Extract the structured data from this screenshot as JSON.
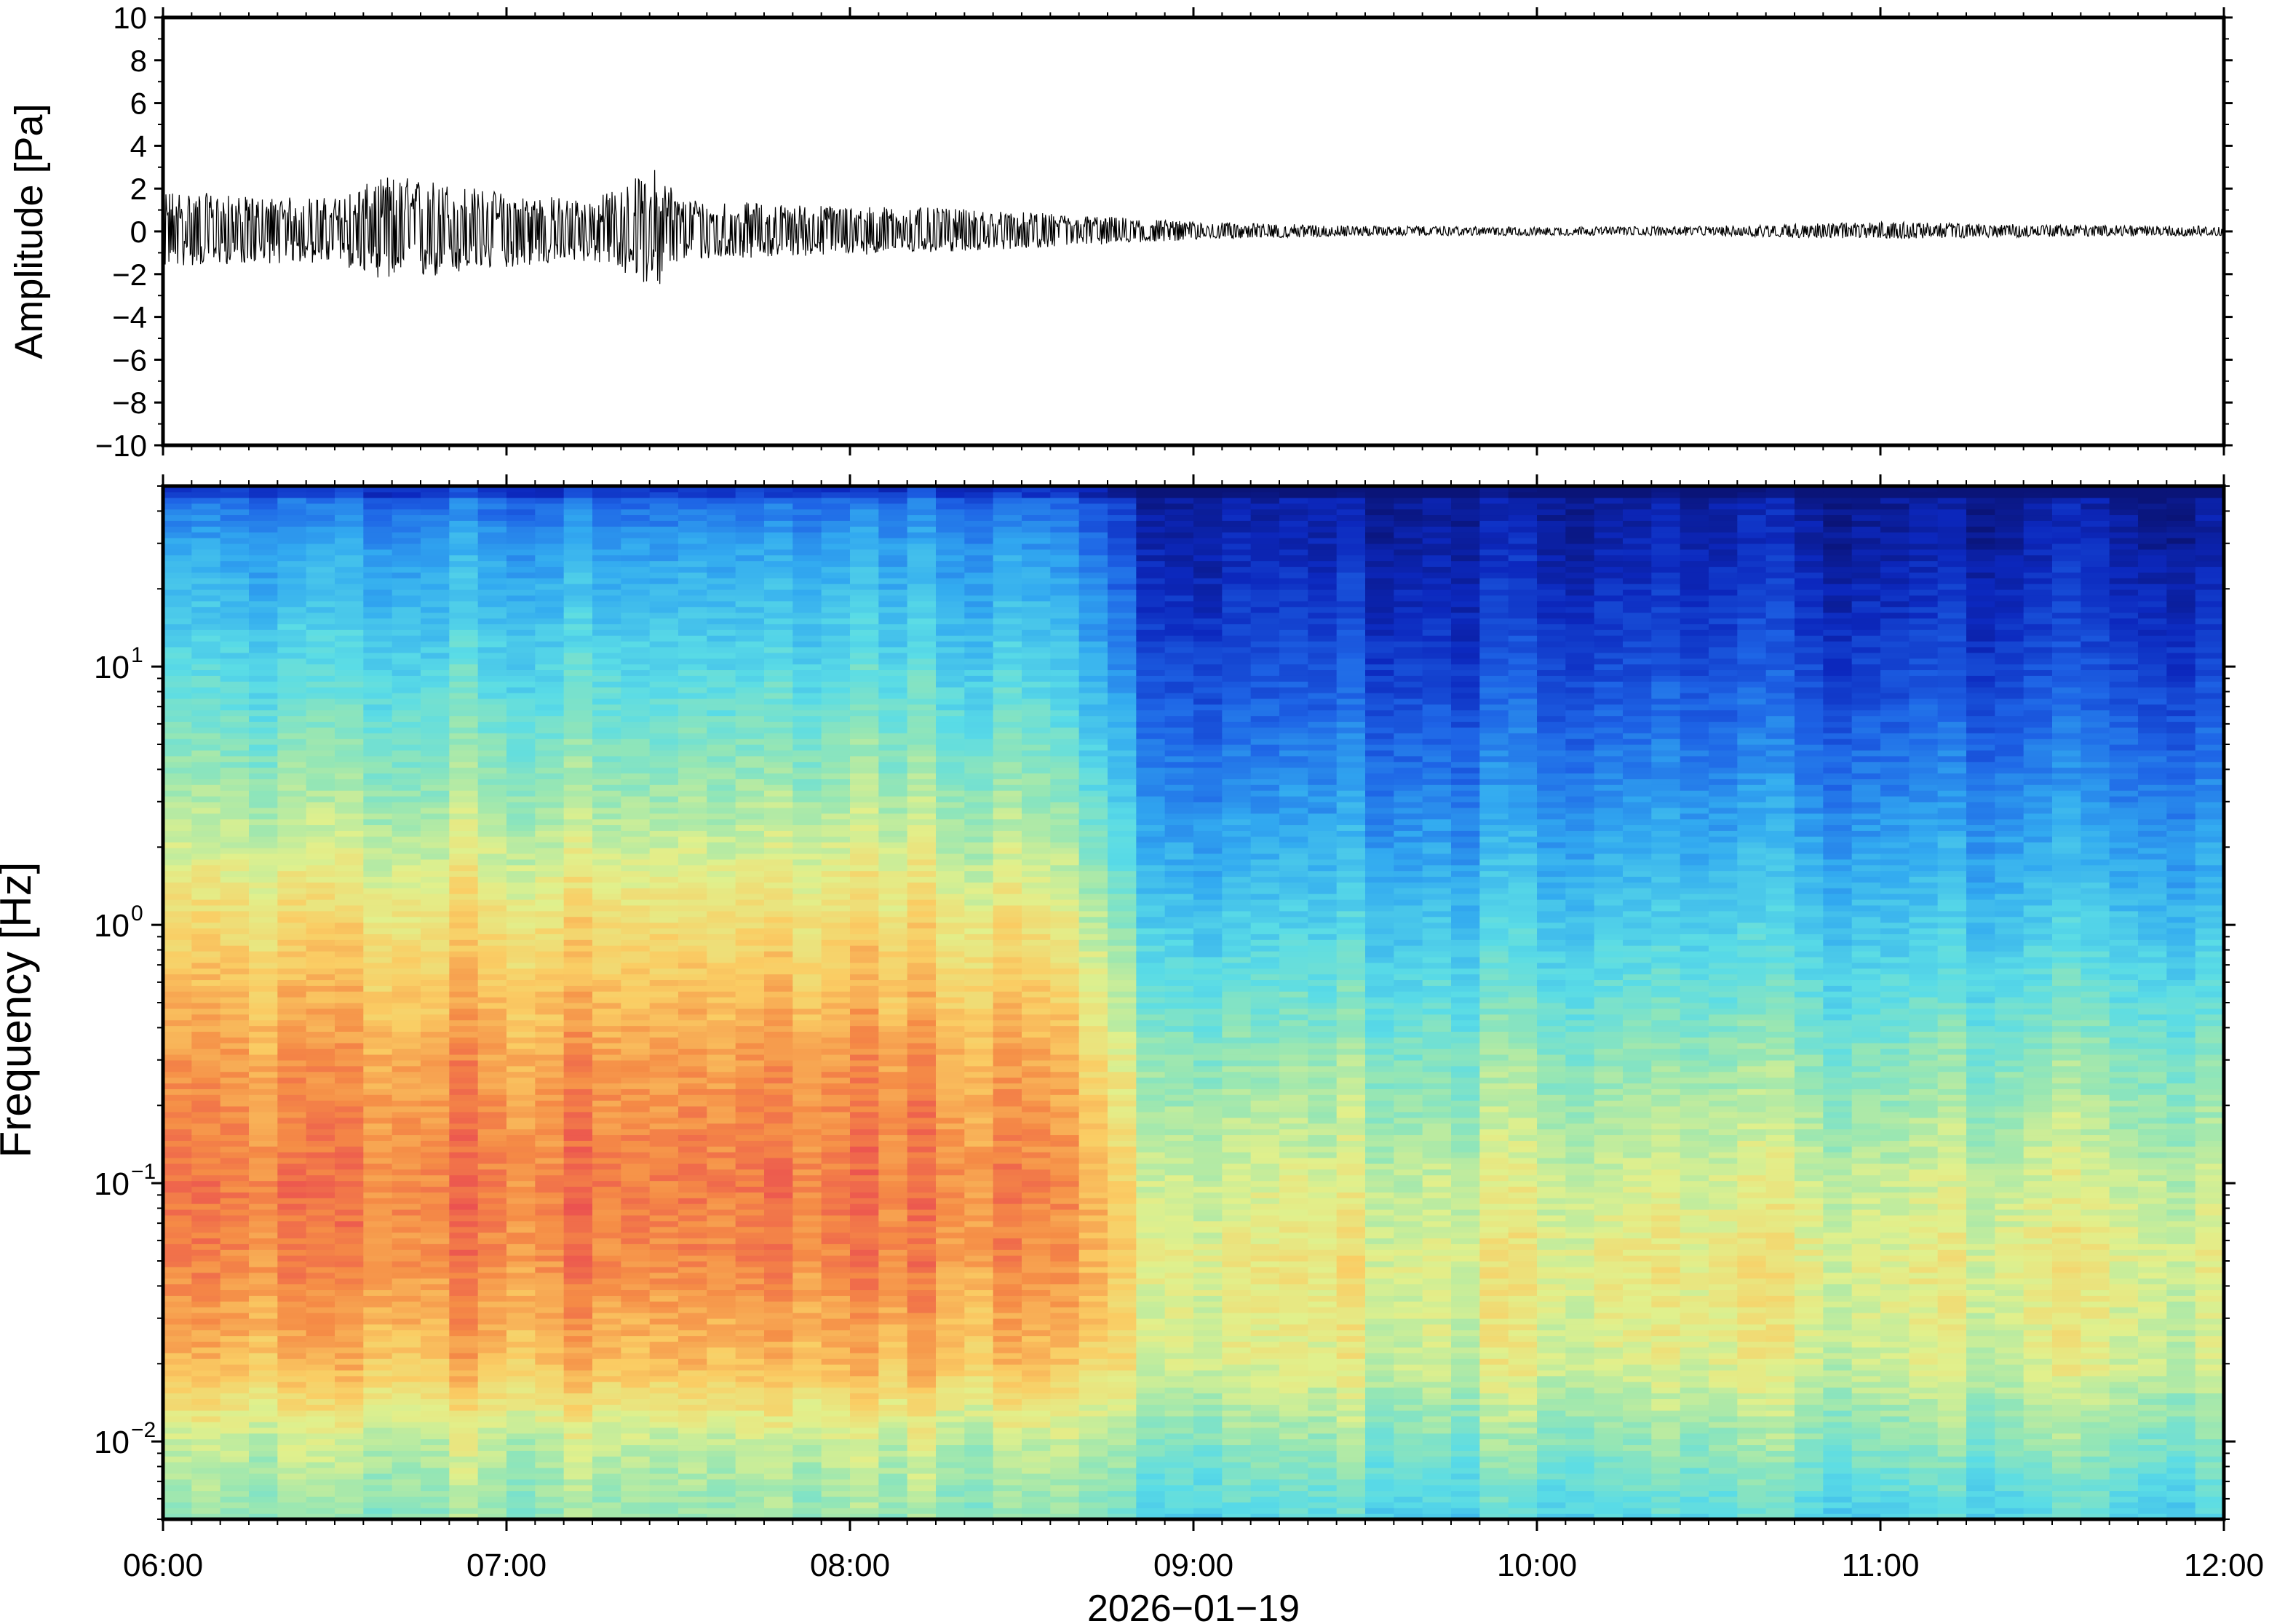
{
  "chart_data": [
    {
      "type": "line",
      "ylabel": "Amplitude [Pa]",
      "ylim": [
        -10,
        10
      ],
      "yticks": [
        "10",
        "8",
        "6",
        "4",
        "2",
        "0",
        "−2",
        "−4",
        "−6",
        "−8",
        "−10"
      ],
      "ytick_values": [
        10,
        8,
        6,
        4,
        2,
        0,
        -2,
        -4,
        -6,
        -8,
        -10
      ],
      "x_range": [
        "06:00",
        "12:00"
      ],
      "grid": false,
      "envelope": {
        "time_hours": [
          0.0,
          0.25,
          0.5,
          0.65,
          0.75,
          1.0,
          1.25,
          1.45,
          1.5,
          1.75,
          2.0,
          2.25,
          2.5,
          2.75,
          3.0,
          3.5,
          4.0,
          4.5,
          4.75,
          5.0,
          5.5,
          6.0
        ],
        "max_pa": [
          2.0,
          1.6,
          1.6,
          2.6,
          2.5,
          1.8,
          1.5,
          3.1,
          1.6,
          1.3,
          1.2,
          1.1,
          0.9,
          0.7,
          0.45,
          0.25,
          0.2,
          0.25,
          0.35,
          0.45,
          0.3,
          0.25
        ],
        "min_pa": [
          -1.7,
          -1.5,
          -1.5,
          -2.3,
          -2.3,
          -1.7,
          -1.4,
          -2.7,
          -1.4,
          -1.2,
          -1.1,
          -1.0,
          -0.8,
          -0.6,
          -0.4,
          -0.2,
          -0.2,
          -0.2,
          -0.3,
          -0.35,
          -0.25,
          -0.2
        ]
      }
    },
    {
      "type": "heatmap",
      "ylabel": "Frequency [Hz]",
      "xlabel": "2026−01−19",
      "yscale": "log",
      "ylim": [
        0.005,
        50
      ],
      "yticks": [
        {
          "base": "10",
          "exp": "1",
          "value": 10
        },
        {
          "base": "10",
          "exp": "0",
          "value": 1
        },
        {
          "base": "10",
          "exp": "−1",
          "value": 0.1
        },
        {
          "base": "10",
          "exp": "−2",
          "value": 0.01
        }
      ],
      "xticks": [
        "06:00",
        "07:00",
        "08:00",
        "09:00",
        "10:00",
        "11:00",
        "12:00"
      ],
      "colormap": "spectral-jet",
      "power_relative_profile": {
        "frequency_hz": [
          0.005,
          0.01,
          0.02,
          0.05,
          0.1,
          0.3,
          1,
          3,
          10,
          30,
          50
        ],
        "before_0845": [
          0.55,
          0.62,
          0.78,
          0.86,
          0.88,
          0.83,
          0.72,
          0.58,
          0.45,
          0.32,
          0.2
        ],
        "after_0845": [
          0.45,
          0.55,
          0.65,
          0.68,
          0.64,
          0.55,
          0.42,
          0.3,
          0.17,
          0.08,
          0.05
        ]
      },
      "quiet_period_start": "08:45"
    }
  ]
}
